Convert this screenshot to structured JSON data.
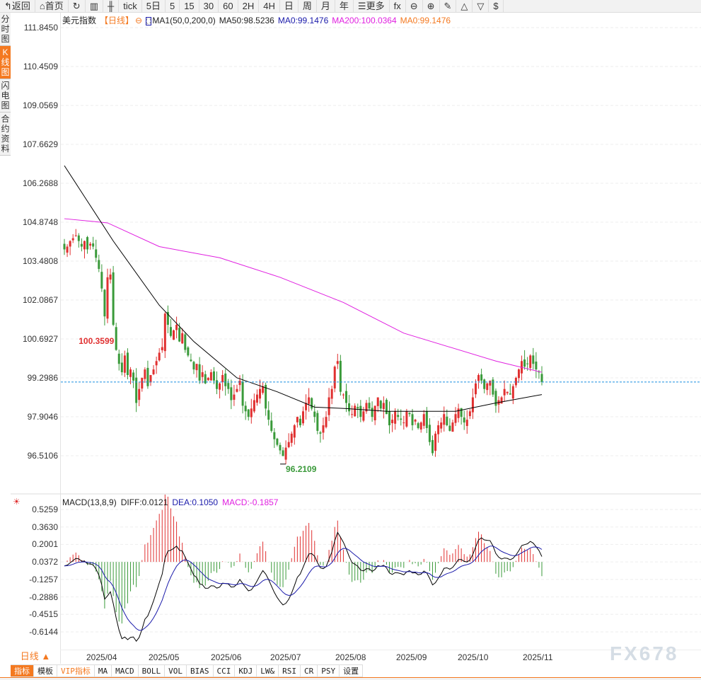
{
  "toolbar": [
    {
      "icon": "back-arrow-icon",
      "label": "返回"
    },
    {
      "icon": "home-icon",
      "label": "首页"
    },
    {
      "icon": "refresh-icon",
      "label": ""
    },
    {
      "icon": "bar-chart-icon",
      "label": ""
    },
    {
      "icon": "candlestick-icon",
      "label": ""
    },
    {
      "label": "tick"
    },
    {
      "label": "5日"
    },
    {
      "label": "5"
    },
    {
      "label": "15"
    },
    {
      "label": "30"
    },
    {
      "label": "60"
    },
    {
      "label": "2H"
    },
    {
      "label": "4H"
    },
    {
      "label": "日"
    },
    {
      "label": "周"
    },
    {
      "label": "月"
    },
    {
      "label": "年"
    },
    {
      "icon": "menu-icon",
      "label": "更多"
    },
    {
      "icon": "function-icon",
      "label": "fx"
    },
    {
      "icon": "zoom-out-icon",
      "label": "⊖"
    },
    {
      "icon": "zoom-in-icon",
      "label": "⊕"
    },
    {
      "icon": "pen-icon",
      "label": "✎"
    },
    {
      "icon": "triangle-up-icon",
      "label": "△"
    },
    {
      "icon": "triangle-down-icon",
      "label": "▽"
    },
    {
      "icon": "dollar-icon",
      "label": "$"
    }
  ],
  "side": [
    "分时图",
    "K线图",
    "闪电图",
    "合约资料"
  ],
  "legend": {
    "name": "美元指数",
    "period": "【日线】",
    "ma_label": "MA1(50,0,200,0)",
    "ma50": "MA50:98.5236",
    "ma0a": "MA0:99.1476",
    "ma200": "MA200:100.0364",
    "ma0b": "MA0:99.1476"
  },
  "macd_legend": {
    "name": "MACD(13,8,9)",
    "diff": "DIFF:0.0121",
    "dea": "DEA:0.1050",
    "macd": "MACD:-0.1857"
  },
  "colors": {
    "up": "#e03030",
    "down": "#3a9a3a",
    "ma50": "#000000",
    "ma200": "#e020e0",
    "diff": "#000000",
    "dea": "#1a1aaa",
    "last": "#1a8fe0",
    "accent": "#f47920"
  },
  "price_axis": [
    "111.8450",
    "110.4509",
    "109.0569",
    "107.6629",
    "106.2688",
    "104.8748",
    "103.4808",
    "102.0867",
    "100.6927",
    "99.2986",
    "97.9046",
    "96.5106"
  ],
  "macd_axis": [
    "0.5259",
    "0.3630",
    "0.2001",
    "0.0372",
    "-0.1257",
    "-0.2886",
    "-0.4515",
    "-0.6144"
  ],
  "dates": [
    "2025/04",
    "2025/05",
    "2025/06",
    "2025/07",
    "2025/08",
    "2025/09",
    "2025/10",
    "2025/11"
  ],
  "annotations": {
    "high": "100.3599",
    "low": "96.2109"
  },
  "last_price": 99.15,
  "period_label": "日线 ▲",
  "tabs": [
    "指标",
    "模板",
    "VIP指标",
    "MA",
    "MACD",
    "BOLL",
    "VOL",
    "BIAS",
    "CCI",
    "KDJ",
    "LW&",
    "RSI",
    "CR",
    "PSY",
    "设置"
  ],
  "watermark": "FX678",
  "chart_data": {
    "type": "candlestick",
    "months_candles": [
      12,
      21,
      21,
      21,
      22,
      21,
      21,
      23,
      5
    ],
    "close": [
      103.9,
      104.0,
      104.2,
      104.3,
      104.4,
      104.2,
      104.0,
      104.2,
      103.9,
      104.1,
      104.0,
      103.6,
      103.2,
      102.5,
      101.5,
      102.9,
      103.0,
      101.2,
      100.3,
      99.8,
      99.5,
      100.1,
      99.4,
      99.6,
      99.2,
      98.4,
      98.9,
      99.3,
      99.6,
      99.0,
      99.4,
      99.6,
      99.9,
      100.2,
      100.4,
      101.6,
      101.2,
      100.8,
      101.0,
      101.2,
      100.6,
      100.9,
      100.3,
      100.1,
      99.9,
      99.6,
      99.8,
      99.2,
      99.5,
      99.1,
      99.3,
      99.5,
      99.2,
      98.9,
      99.1,
      99.4,
      99.0,
      98.9,
      98.5,
      98.7,
      98.9,
      99.2,
      98.3,
      98.1,
      97.9,
      98.2,
      98.5,
      98.7,
      98.9,
      99.0,
      98.2,
      97.8,
      97.4,
      97.1,
      96.9,
      96.7,
      96.5,
      96.8,
      97.0,
      97.3,
      97.6,
      97.9,
      97.6,
      98.1,
      98.4,
      98.6,
      98.2,
      97.9,
      97.4,
      97.3,
      97.6,
      97.9,
      98.6,
      98.9,
      99.7,
      99.9,
      98.8,
      98.7,
      98.4,
      98.1,
      98.0,
      98.3,
      98.2,
      97.9,
      98.1,
      98.4,
      98.2,
      97.9,
      98.3,
      98.6,
      98.2,
      98.4,
      98.0,
      97.6,
      97.8,
      98.1,
      97.9,
      97.8,
      97.7,
      98.1,
      98.0,
      97.6,
      97.8,
      97.5,
      97.7,
      98.0,
      97.5,
      97.0,
      96.6,
      97.3,
      97.6,
      97.7,
      98.0,
      97.6,
      97.4,
      97.7,
      98.0,
      98.2,
      97.9,
      97.7,
      97.8,
      98.1,
      98.6,
      99.1,
      99.4,
      99.2,
      98.9,
      99.1,
      99.2,
      98.7,
      98.3,
      98.5,
      98.6,
      98.9,
      98.8,
      98.7,
      99.0,
      99.3,
      99.6,
      99.9,
      99.7,
      99.8,
      100.1,
      99.8,
      99.6,
      99.5,
      99.15
    ],
    "ma50": [
      [
        0,
        106.9
      ],
      [
        17,
        104.2
      ],
      [
        33,
        101.9
      ],
      [
        45,
        100.6
      ],
      [
        60,
        99.3
      ],
      [
        74,
        98.8
      ],
      [
        87,
        98.25
      ],
      [
        98,
        98.2
      ],
      [
        112,
        98.1
      ],
      [
        124,
        98.1
      ],
      [
        136,
        98.1
      ],
      [
        150,
        98.4
      ],
      [
        166,
        98.7
      ]
    ],
    "ma200": [
      [
        0,
        105.0
      ],
      [
        15,
        104.85
      ],
      [
        33,
        104.0
      ],
      [
        54,
        103.6
      ],
      [
        75,
        102.9
      ],
      [
        97,
        102.0
      ],
      [
        118,
        100.9
      ],
      [
        150,
        99.9
      ],
      [
        166,
        99.5
      ]
    ],
    "ylim": [
      96.5106,
      111.845
    ],
    "macd_ylim": [
      -0.6144,
      0.5259
    ],
    "macd_params": [
      13,
      8,
      9
    ]
  }
}
